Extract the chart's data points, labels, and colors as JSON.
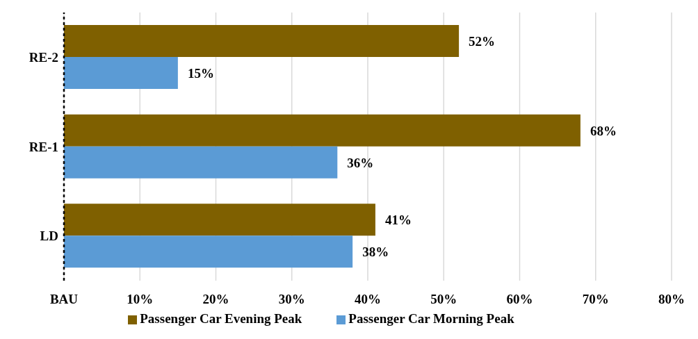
{
  "chart_data": {
    "type": "bar",
    "orientation": "horizontal",
    "categories": [
      "RE-2",
      "RE-1",
      "LD"
    ],
    "series": [
      {
        "name": "Passenger Car Evening Peak",
        "color": "#7f6000",
        "values": [
          52,
          68,
          41
        ],
        "value_labels": [
          "52%",
          "68%",
          "41%"
        ]
      },
      {
        "name": "Passenger Car Morning Peak",
        "color": "#5b9bd5",
        "values": [
          15,
          36,
          38
        ],
        "value_labels": [
          "15%",
          "36%",
          "38%"
        ]
      }
    ],
    "xlim": [
      0,
      80
    ],
    "xticks": [
      {
        "value": 0,
        "label": "BAU"
      },
      {
        "value": 10,
        "label": "10%"
      },
      {
        "value": 20,
        "label": "20%"
      },
      {
        "value": 30,
        "label": "30%"
      },
      {
        "value": 40,
        "label": "40%"
      },
      {
        "value": 50,
        "label": "50%"
      },
      {
        "value": 60,
        "label": "60%"
      },
      {
        "value": 70,
        "label": "70%"
      },
      {
        "value": 80,
        "label": "80%"
      }
    ],
    "ref_lines": [
      {
        "axis": "x",
        "value": 0,
        "line_style": "dashed",
        "color": "#000000"
      }
    ],
    "grid": "x",
    "legend": "bottom"
  }
}
